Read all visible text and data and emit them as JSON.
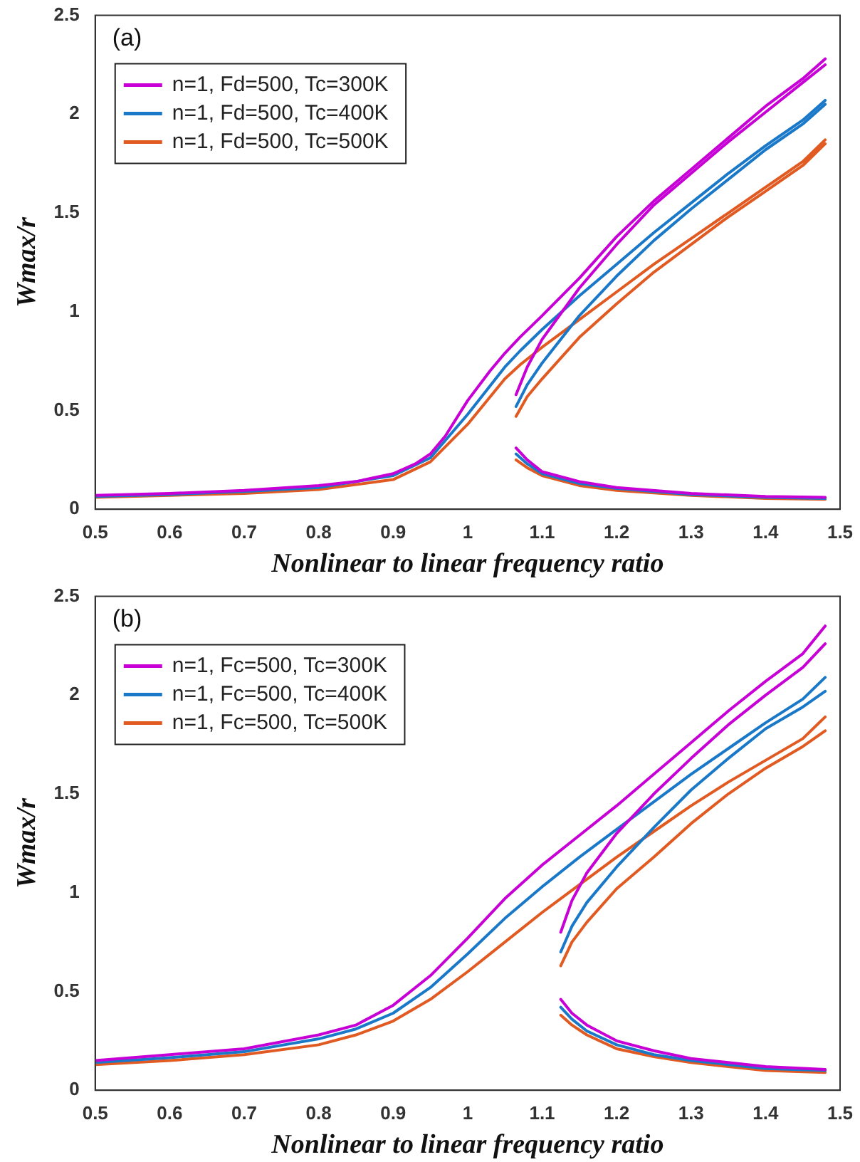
{
  "chart_data": [
    {
      "type": "line",
      "ylabel": "Wmax/r",
      "xlabel": "Nonlinear to linear frequency ratio",
      "annotations": [
        "(a)"
      ],
      "xlim": [
        0.5,
        1.5
      ],
      "xticks": [
        0.5,
        0.6,
        0.7,
        0.8,
        0.9,
        1,
        1.1,
        1.2,
        1.3,
        1.4,
        1.5
      ],
      "ylim": [
        0,
        2.5
      ],
      "yticks": [
        0,
        0.5,
        1,
        1.5,
        2,
        2.5
      ],
      "grid": false,
      "legend": "top left",
      "marker": "none",
      "line_style": "solid",
      "series": [
        {
          "name": "n=1, Fd=500, Tc=300K",
          "color": "#c700d6",
          "x": [
            0.5,
            0.6,
            0.7,
            0.8,
            0.85,
            0.9,
            0.93,
            0.95,
            0.97,
            1.0,
            1.03,
            1.05,
            1.07,
            1.1,
            1.15,
            1.2,
            1.25,
            1.3,
            1.35,
            1.4,
            1.45,
            1.48,
            null,
            1.065,
            1.08,
            1.1,
            1.15,
            1.2,
            1.25,
            1.3,
            1.35,
            1.4,
            1.45,
            1.48,
            null,
            1.065,
            1.08,
            1.1,
            1.15,
            1.2,
            1.3,
            1.4,
            1.48
          ],
          "values": [
            0.07,
            0.08,
            0.095,
            0.12,
            0.14,
            0.18,
            0.23,
            0.28,
            0.37,
            0.55,
            0.7,
            0.79,
            0.87,
            0.98,
            1.17,
            1.38,
            1.56,
            1.72,
            1.88,
            2.04,
            2.18,
            2.28,
            null,
            0.58,
            0.72,
            0.86,
            1.12,
            1.34,
            1.54,
            1.7,
            1.86,
            2.01,
            2.16,
            2.25,
            null,
            0.31,
            0.25,
            0.19,
            0.14,
            0.11,
            0.08,
            0.065,
            0.06
          ]
        },
        {
          "name": "n=1, Fd=500, Tc=400K",
          "color": "#1a78c8",
          "x": [
            0.5,
            0.6,
            0.7,
            0.8,
            0.9,
            0.95,
            1.0,
            1.05,
            1.07,
            1.1,
            1.15,
            1.2,
            1.25,
            1.3,
            1.35,
            1.4,
            1.45,
            1.48,
            null,
            1.065,
            1.08,
            1.1,
            1.15,
            1.2,
            1.25,
            1.3,
            1.35,
            1.4,
            1.45,
            1.48,
            null,
            1.065,
            1.08,
            1.1,
            1.15,
            1.2,
            1.3,
            1.4,
            1.48
          ],
          "values": [
            0.065,
            0.075,
            0.09,
            0.11,
            0.17,
            0.26,
            0.48,
            0.72,
            0.8,
            0.91,
            1.08,
            1.24,
            1.4,
            1.55,
            1.7,
            1.84,
            1.97,
            2.07,
            null,
            0.52,
            0.63,
            0.74,
            0.98,
            1.18,
            1.36,
            1.52,
            1.67,
            1.82,
            1.95,
            2.05,
            null,
            0.28,
            0.23,
            0.18,
            0.13,
            0.105,
            0.075,
            0.06,
            0.055
          ]
        },
        {
          "name": "n=1, Fd=500, Tc=500K",
          "color": "#e05a22",
          "x": [
            0.5,
            0.6,
            0.7,
            0.8,
            0.9,
            0.95,
            1.0,
            1.05,
            1.07,
            1.1,
            1.15,
            1.2,
            1.25,
            1.3,
            1.35,
            1.4,
            1.45,
            1.48,
            null,
            1.065,
            1.08,
            1.1,
            1.15,
            1.2,
            1.25,
            1.3,
            1.35,
            1.4,
            1.45,
            1.48,
            null,
            1.065,
            1.08,
            1.1,
            1.15,
            1.2,
            1.3,
            1.4,
            1.48
          ],
          "values": [
            0.06,
            0.07,
            0.08,
            0.1,
            0.15,
            0.24,
            0.43,
            0.66,
            0.73,
            0.82,
            0.96,
            1.1,
            1.24,
            1.37,
            1.5,
            1.63,
            1.76,
            1.87,
            null,
            0.47,
            0.57,
            0.66,
            0.87,
            1.04,
            1.2,
            1.34,
            1.48,
            1.61,
            1.74,
            1.85,
            null,
            0.25,
            0.21,
            0.17,
            0.12,
            0.095,
            0.07,
            0.055,
            0.05
          ]
        }
      ]
    },
    {
      "type": "line",
      "ylabel": "Wmax/r",
      "xlabel": "Nonlinear to linear frequency ratio",
      "annotations": [
        "(b)"
      ],
      "xlim": [
        0.5,
        1.5
      ],
      "xticks": [
        0.5,
        0.6,
        0.7,
        0.8,
        0.9,
        1,
        1.1,
        1.2,
        1.3,
        1.4,
        1.5
      ],
      "ylim": [
        0,
        2.5
      ],
      "yticks": [
        0,
        0.5,
        1,
        1.5,
        2,
        2.5
      ],
      "grid": false,
      "legend": "top left",
      "marker": "none",
      "line_style": "solid",
      "series": [
        {
          "name": "n=1, Fc=500, Tc=300K",
          "color": "#c700d6",
          "x": [
            0.5,
            0.6,
            0.7,
            0.8,
            0.85,
            0.9,
            0.95,
            1.0,
            1.05,
            1.1,
            1.15,
            1.2,
            1.25,
            1.3,
            1.35,
            1.4,
            1.45,
            1.48,
            null,
            1.125,
            1.14,
            1.16,
            1.2,
            1.25,
            1.3,
            1.35,
            1.4,
            1.45,
            1.48,
            null,
            1.125,
            1.14,
            1.16,
            1.2,
            1.25,
            1.3,
            1.4,
            1.48
          ],
          "values": [
            0.15,
            0.18,
            0.21,
            0.28,
            0.33,
            0.43,
            0.58,
            0.77,
            0.97,
            1.14,
            1.29,
            1.44,
            1.6,
            1.76,
            1.92,
            2.07,
            2.21,
            2.35,
            null,
            0.8,
            0.96,
            1.1,
            1.3,
            1.5,
            1.68,
            1.85,
            2.0,
            2.14,
            2.26,
            null,
            0.46,
            0.39,
            0.33,
            0.25,
            0.2,
            0.16,
            0.12,
            0.105
          ]
        },
        {
          "name": "n=1, Fc=500, Tc=400K",
          "color": "#1a78c8",
          "x": [
            0.5,
            0.6,
            0.7,
            0.8,
            0.85,
            0.9,
            0.95,
            1.0,
            1.05,
            1.1,
            1.15,
            1.2,
            1.25,
            1.3,
            1.35,
            1.4,
            1.45,
            1.48,
            null,
            1.125,
            1.14,
            1.16,
            1.2,
            1.25,
            1.3,
            1.35,
            1.4,
            1.45,
            1.48,
            null,
            1.125,
            1.14,
            1.16,
            1.2,
            1.25,
            1.3,
            1.4,
            1.48
          ],
          "values": [
            0.14,
            0.165,
            0.195,
            0.26,
            0.31,
            0.39,
            0.52,
            0.69,
            0.87,
            1.03,
            1.18,
            1.32,
            1.46,
            1.6,
            1.73,
            1.86,
            1.98,
            2.09,
            null,
            0.7,
            0.83,
            0.95,
            1.13,
            1.33,
            1.52,
            1.68,
            1.83,
            1.94,
            2.02,
            null,
            0.42,
            0.36,
            0.3,
            0.23,
            0.18,
            0.15,
            0.11,
            0.1
          ]
        },
        {
          "name": "n=1, Fc=500, Tc=500K",
          "color": "#e05a22",
          "x": [
            0.5,
            0.6,
            0.7,
            0.8,
            0.85,
            0.9,
            0.95,
            1.0,
            1.05,
            1.1,
            1.15,
            1.2,
            1.25,
            1.3,
            1.35,
            1.4,
            1.45,
            1.48,
            null,
            1.125,
            1.14,
            1.16,
            1.2,
            1.25,
            1.3,
            1.35,
            1.4,
            1.45,
            1.48,
            null,
            1.125,
            1.14,
            1.16,
            1.2,
            1.25,
            1.3,
            1.4,
            1.48
          ],
          "values": [
            0.13,
            0.15,
            0.18,
            0.23,
            0.28,
            0.35,
            0.46,
            0.6,
            0.75,
            0.9,
            1.04,
            1.18,
            1.31,
            1.44,
            1.56,
            1.67,
            1.78,
            1.89,
            null,
            0.63,
            0.75,
            0.85,
            1.02,
            1.18,
            1.35,
            1.5,
            1.63,
            1.74,
            1.82,
            null,
            0.38,
            0.33,
            0.28,
            0.21,
            0.17,
            0.14,
            0.1,
            0.09
          ]
        }
      ]
    }
  ]
}
